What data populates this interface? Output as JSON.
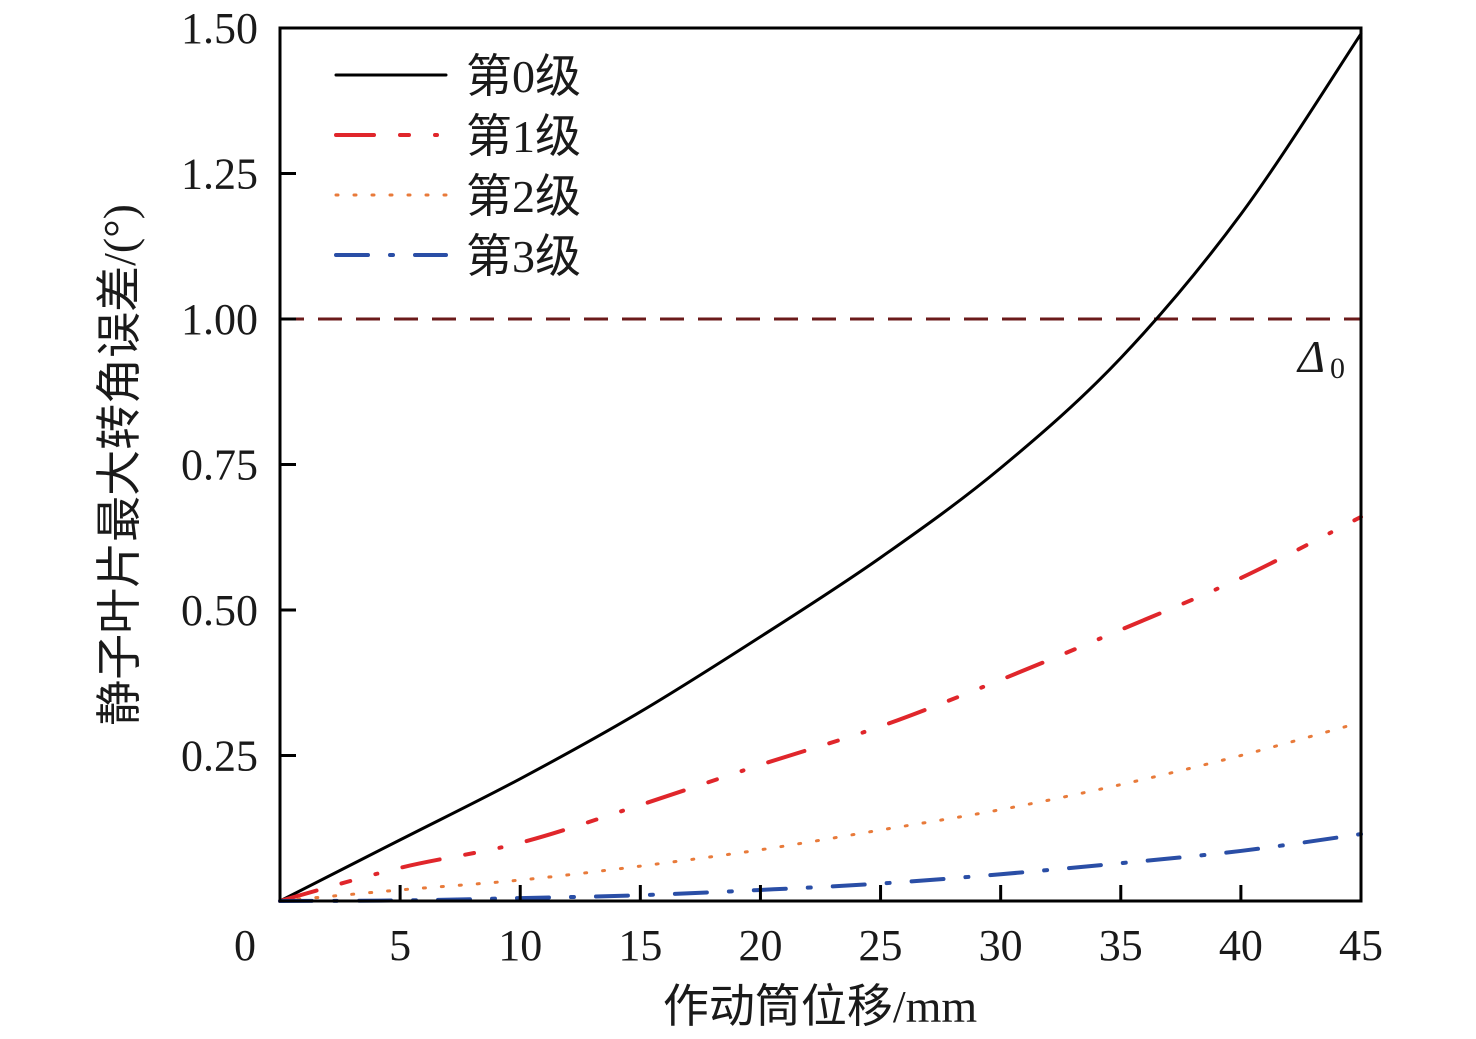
{
  "chart_data": {
    "type": "line",
    "title": "",
    "xlabel": "作动筒位移/mm",
    "ylabel": "静子叶片最大转角误差/(°)",
    "xlim": [
      0,
      45
    ],
    "ylim": [
      0,
      1.5
    ],
    "x_ticks": [
      "0",
      "5",
      "10",
      "15",
      "20",
      "25",
      "30",
      "35",
      "40",
      "45"
    ],
    "y_ticks": [
      "0.25",
      "0.50",
      "0.75",
      "1.00",
      "1.25",
      "1.50"
    ],
    "grid": false,
    "legend_position": "top-left",
    "x": [
      0,
      5,
      10,
      15,
      20,
      25,
      30,
      35,
      40,
      45
    ],
    "series": [
      {
        "name": "第0级",
        "color": "#000000",
        "style": "solid",
        "values": [
          0,
          0.105,
          0.21,
          0.325,
          0.454,
          0.59,
          0.744,
          0.933,
          1.18,
          1.49
        ]
      },
      {
        "name": "第1级",
        "color": "#e0262b",
        "style": "dash-dot-dot",
        "values": [
          0,
          0.057,
          0.1,
          0.165,
          0.234,
          0.3,
          0.38,
          0.466,
          0.555,
          0.66
        ]
      },
      {
        "name": "第2级",
        "color": "#e87a3a",
        "style": "dotted",
        "values": [
          0,
          0.019,
          0.036,
          0.06,
          0.088,
          0.122,
          0.157,
          0.2,
          0.25,
          0.307
        ]
      },
      {
        "name": "第3级",
        "color": "#2a4ea6",
        "style": "dash-dot",
        "values": [
          0,
          0.001,
          0.005,
          0.01,
          0.019,
          0.03,
          0.046,
          0.065,
          0.086,
          0.115
        ]
      }
    ],
    "reference_line": {
      "y": 1.0,
      "label": "Δ",
      "label_subscript": "0",
      "color": "#6b1a1a"
    }
  }
}
